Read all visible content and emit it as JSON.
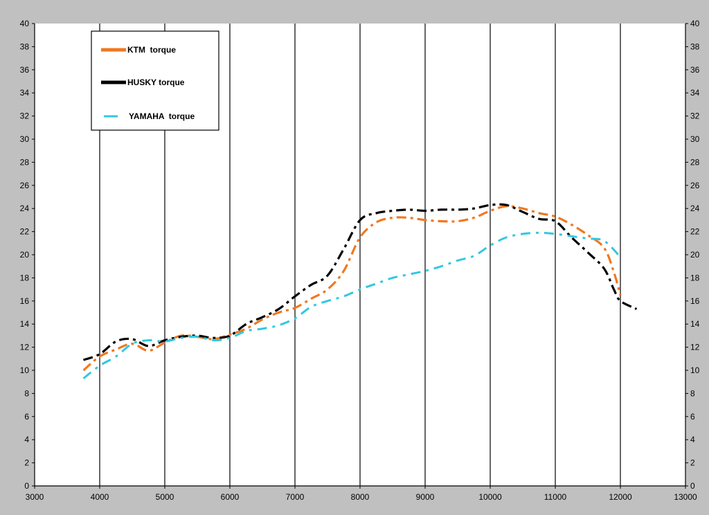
{
  "chart_data": {
    "type": "line",
    "title": "",
    "xlabel": "",
    "ylabel": "",
    "xlim": [
      3000,
      13000
    ],
    "ylim": [
      0,
      40
    ],
    "x_ticks": [
      3000,
      4000,
      5000,
      6000,
      7000,
      8000,
      9000,
      10000,
      11000,
      12000,
      13000
    ],
    "y_ticks": [
      0,
      2,
      4,
      6,
      8,
      10,
      12,
      14,
      16,
      18,
      20,
      22,
      24,
      26,
      28,
      30,
      32,
      34,
      36,
      38,
      40
    ],
    "grid": "vertical",
    "legend_position": "top-left",
    "background_color": "#ffffff",
    "series": [
      {
        "name": "KTM  torque",
        "color": "#f07820",
        "style": "dash-dot",
        "x": [
          3750,
          4000,
          4250,
          4500,
          4750,
          5000,
          5250,
          5500,
          5750,
          6000,
          6250,
          6500,
          6750,
          7000,
          7250,
          7500,
          7750,
          8000,
          8250,
          8500,
          8750,
          9000,
          9250,
          9500,
          9750,
          10000,
          10250,
          10500,
          10750,
          11000,
          11250,
          11500,
          11750,
          11900,
          12000
        ],
        "values": [
          10.0,
          11.2,
          11.8,
          12.3,
          11.7,
          12.4,
          13.0,
          12.9,
          12.7,
          13.1,
          13.6,
          14.4,
          15.0,
          15.4,
          16.2,
          17.0,
          18.6,
          21.5,
          22.8,
          23.2,
          23.2,
          23.0,
          22.9,
          22.9,
          23.2,
          23.8,
          24.2,
          24.0,
          23.6,
          23.3,
          22.6,
          21.7,
          20.6,
          18.5,
          16.5
        ]
      },
      {
        "name": "HUSKY torque",
        "color": "#000000",
        "style": "dash-dot",
        "x": [
          3750,
          4000,
          4250,
          4500,
          4750,
          5000,
          5250,
          5500,
          5750,
          6000,
          6250,
          6500,
          6750,
          7000,
          7250,
          7500,
          7750,
          8000,
          8250,
          8500,
          8750,
          9000,
          9250,
          9500,
          9750,
          10000,
          10250,
          10500,
          10750,
          11000,
          11250,
          11500,
          11750,
          11900,
          12000,
          12250
        ],
        "values": [
          10.9,
          11.4,
          12.5,
          12.7,
          12.1,
          12.6,
          12.9,
          13.0,
          12.8,
          13.0,
          14.0,
          14.6,
          15.3,
          16.4,
          17.4,
          18.2,
          20.5,
          23.0,
          23.6,
          23.8,
          23.9,
          23.8,
          23.9,
          23.9,
          24.0,
          24.3,
          24.3,
          23.7,
          23.1,
          22.9,
          21.5,
          20.2,
          18.8,
          17.0,
          16.0,
          15.3
        ]
      },
      {
        "name": "YAMAHA  torque",
        "color": "#30c8e0",
        "style": "dash-dot",
        "x": [
          3750,
          4000,
          4250,
          4500,
          4750,
          5000,
          5250,
          5500,
          5750,
          6000,
          6250,
          6500,
          6750,
          7000,
          7250,
          7500,
          7750,
          8000,
          8250,
          8500,
          8750,
          9000,
          9250,
          9500,
          9750,
          10000,
          10250,
          10500,
          10750,
          11000,
          11250,
          11500,
          11750,
          12000
        ],
        "values": [
          9.3,
          10.4,
          11.2,
          12.3,
          12.6,
          12.5,
          12.8,
          12.9,
          12.6,
          12.8,
          13.4,
          13.6,
          13.9,
          14.5,
          15.5,
          16.0,
          16.4,
          17.0,
          17.5,
          18.0,
          18.3,
          18.6,
          19.0,
          19.5,
          19.9,
          20.8,
          21.5,
          21.8,
          21.9,
          21.8,
          21.6,
          21.4,
          21.2,
          19.8
        ]
      }
    ]
  }
}
